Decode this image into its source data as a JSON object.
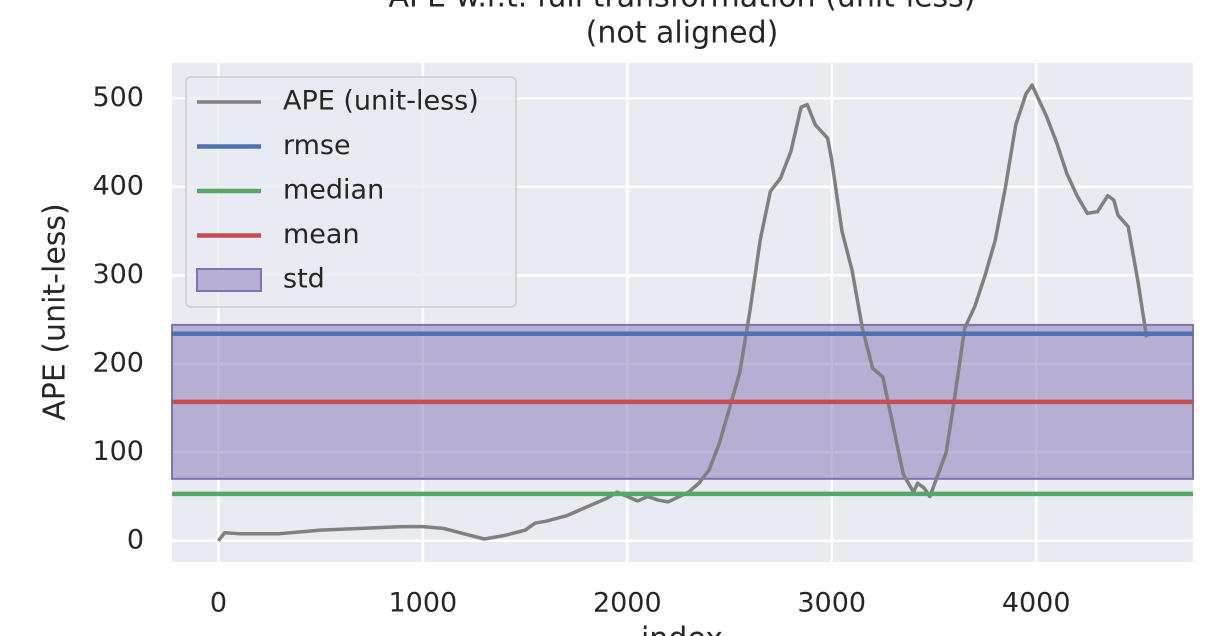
{
  "chart_data": {
    "type": "line",
    "title": "APE w.r.t. full transformation (unit-less)",
    "subtitle": "(not aligned)",
    "xlabel": "index",
    "ylabel": "APE (unit-less)",
    "xlim": [
      -227,
      4767
    ],
    "ylim": [
      -24,
      540
    ],
    "xticks": [
      0,
      1000,
      2000,
      3000,
      4000
    ],
    "yticks": [
      0,
      100,
      200,
      300,
      400,
      500
    ],
    "grid": true,
    "legend": "upper left",
    "x": [
      0,
      30,
      100,
      300,
      500,
      700,
      900,
      1000,
      1100,
      1200,
      1300,
      1350,
      1400,
      1500,
      1550,
      1600,
      1700,
      1800,
      1900,
      1950,
      2000,
      2050,
      2100,
      2150,
      2200,
      2300,
      2350,
      2400,
      2450,
      2500,
      2550,
      2600,
      2650,
      2700,
      2750,
      2800,
      2850,
      2880,
      2920,
      2980,
      3000,
      3050,
      3100,
      3150,
      3200,
      3250,
      3300,
      3350,
      3400,
      3420,
      3450,
      3480,
      3520,
      3560,
      3600,
      3650,
      3700,
      3750,
      3800,
      3850,
      3900,
      3950,
      3980,
      4050,
      4100,
      4150,
      4200,
      4250,
      4300,
      4350,
      4380,
      4400,
      4450,
      4500,
      4540
    ],
    "series": [
      {
        "name": "APE (unit-less)",
        "color": "#808080",
        "values": [
          0,
          9,
          8,
          8,
          12,
          14,
          16,
          16,
          14,
          8,
          2,
          4,
          6,
          12,
          20,
          22,
          28,
          38,
          48,
          55,
          50,
          45,
          50,
          46,
          44,
          55,
          65,
          80,
          110,
          150,
          190,
          260,
          340,
          395,
          410,
          440,
          490,
          493,
          470,
          455,
          430,
          350,
          305,
          240,
          195,
          185,
          130,
          75,
          55,
          65,
          60,
          50,
          75,
          100,
          160,
          240,
          265,
          300,
          340,
          400,
          470,
          505,
          515,
          480,
          450,
          415,
          390,
          370,
          372,
          390,
          385,
          368,
          355,
          290,
          230
        ]
      }
    ],
    "stats": [
      {
        "name": "rmse",
        "color": "#4c72b0",
        "value": 234
      },
      {
        "name": "median",
        "color": "#55a868",
        "value": 53
      },
      {
        "name": "mean",
        "color": "#c44e52",
        "value": 157
      }
    ],
    "std": {
      "name": "std",
      "color": "#8172b3",
      "value": 87
    }
  }
}
